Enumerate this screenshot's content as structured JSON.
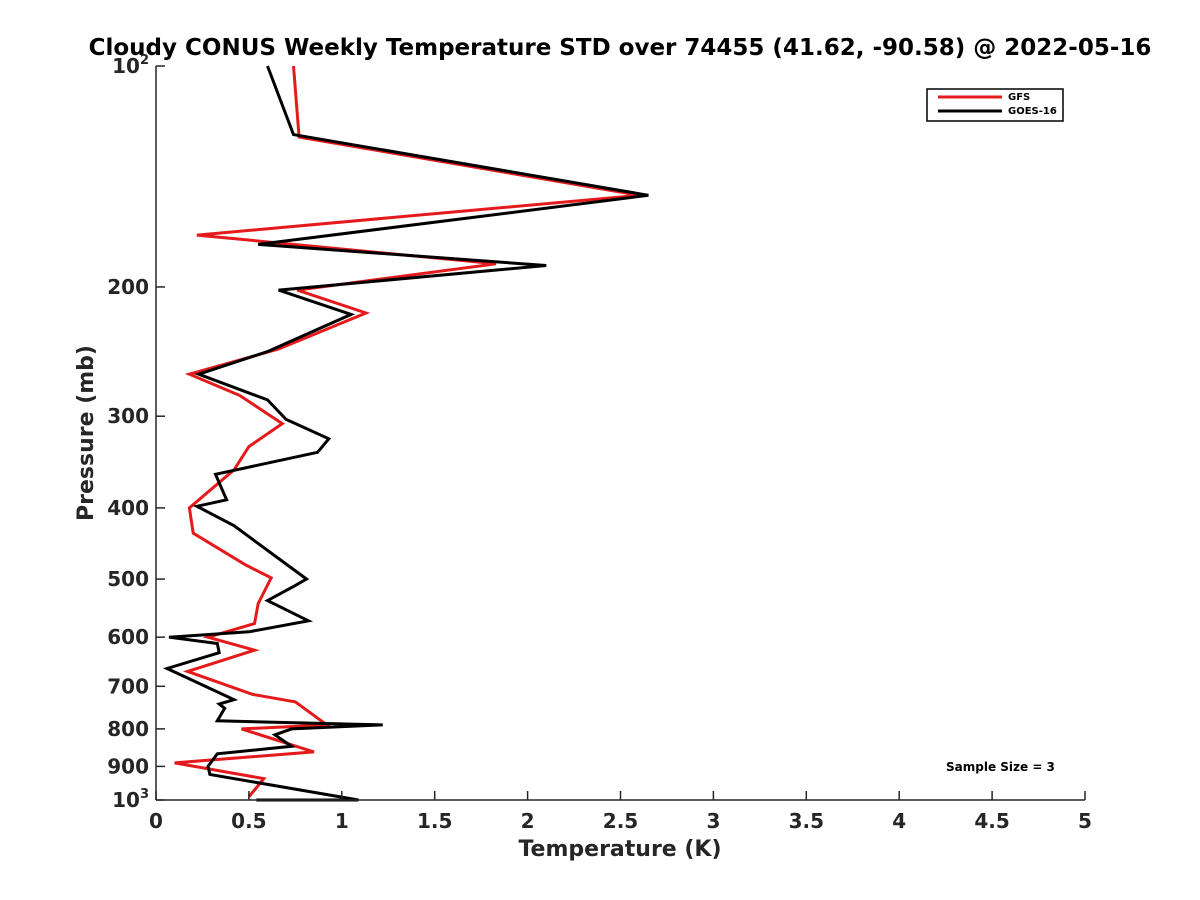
{
  "chart_data": {
    "type": "line",
    "title": "Cloudy CONUS Weekly Temperature STD over 74455 (41.62, -90.58) @ 2022-05-16",
    "xlabel": "Temperature (K)",
    "ylabel": "Pressure (mb)",
    "xlim": [
      0,
      5
    ],
    "ylim": [
      100,
      1000
    ],
    "y_scale": "log",
    "y_reversed": true,
    "x_ticks": [
      "0",
      "0.5",
      "1",
      "1.5",
      "2",
      "2.5",
      "3",
      "3.5",
      "4",
      "4.5",
      "5"
    ],
    "y_ticks": [
      {
        "value": 100,
        "base": "10",
        "exp": "2"
      },
      {
        "value": 200,
        "label": "200"
      },
      {
        "value": 300,
        "label": "300"
      },
      {
        "value": 400,
        "label": "400"
      },
      {
        "value": 500,
        "label": "500"
      },
      {
        "value": 600,
        "label": "600"
      },
      {
        "value": 700,
        "label": "700"
      },
      {
        "value": 800,
        "label": "800"
      },
      {
        "value": 900,
        "label": "900"
      },
      {
        "value": 1000,
        "base": "10",
        "exp": "3"
      }
    ],
    "grid": false,
    "legend_position": "top-right",
    "annotation": "Sample Size = 3",
    "series": [
      {
        "name": "GFS",
        "color": "#e41a1c",
        "points": [
          [
            0.74,
            100
          ],
          [
            0.77,
            125
          ],
          [
            2.6,
            150
          ],
          [
            0.22,
            170
          ],
          [
            1.83,
            186
          ],
          [
            0.76,
            202
          ],
          [
            1.13,
            217
          ],
          [
            0.66,
            243
          ],
          [
            0.18,
            263
          ],
          [
            0.45,
            281
          ],
          [
            0.68,
            307
          ],
          [
            0.5,
            330
          ],
          [
            0.42,
            355
          ],
          [
            0.18,
            400
          ],
          [
            0.2,
            433
          ],
          [
            0.48,
            478
          ],
          [
            0.62,
            498
          ],
          [
            0.55,
            540
          ],
          [
            0.53,
            575
          ],
          [
            0.28,
            600
          ],
          [
            0.53,
            625
          ],
          [
            0.17,
            668
          ],
          [
            0.52,
            718
          ],
          [
            0.75,
            735
          ],
          [
            0.92,
            790
          ],
          [
            0.46,
            800
          ],
          [
            0.85,
            860
          ],
          [
            0.1,
            890
          ],
          [
            0.58,
            935
          ],
          [
            0.5,
            990
          ]
        ]
      },
      {
        "name": "GOES-16",
        "color": "#000000",
        "points": [
          [
            0.6,
            100
          ],
          [
            0.74,
            124
          ],
          [
            2.65,
            150
          ],
          [
            0.55,
            175
          ],
          [
            2.1,
            187
          ],
          [
            0.66,
            202
          ],
          [
            1.05,
            218
          ],
          [
            0.6,
            245
          ],
          [
            0.23,
            263
          ],
          [
            0.6,
            285
          ],
          [
            0.7,
            303
          ],
          [
            0.93,
            322
          ],
          [
            0.87,
            336
          ],
          [
            0.32,
            360
          ],
          [
            0.38,
            390
          ],
          [
            0.22,
            398
          ],
          [
            0.42,
            423
          ],
          [
            0.63,
            463
          ],
          [
            0.81,
            500
          ],
          [
            0.75,
            510
          ],
          [
            0.6,
            535
          ],
          [
            0.82,
            570
          ],
          [
            0.5,
            590
          ],
          [
            0.07,
            600
          ],
          [
            0.33,
            612
          ],
          [
            0.34,
            630
          ],
          [
            0.06,
            662
          ],
          [
            0.42,
            730
          ],
          [
            0.34,
            740
          ],
          [
            0.37,
            750
          ],
          [
            0.33,
            780
          ],
          [
            1.22,
            790
          ],
          [
            0.73,
            800
          ],
          [
            0.64,
            815
          ],
          [
            0.73,
            845
          ],
          [
            0.33,
            865
          ],
          [
            0.28,
            900
          ],
          [
            0.29,
            923
          ],
          [
            1.09,
            1000
          ],
          [
            0.54,
            1000
          ]
        ]
      }
    ]
  }
}
